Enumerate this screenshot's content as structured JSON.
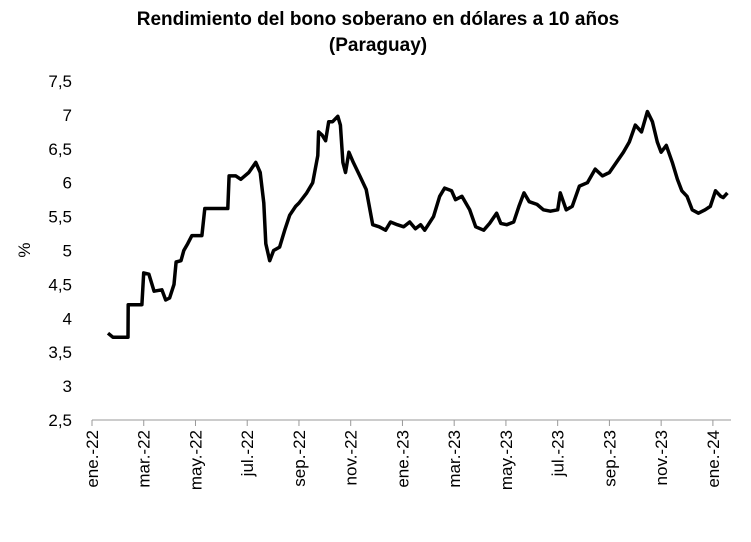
{
  "chart_data": {
    "type": "line",
    "title": [
      "Rendimiento del bono soberano en dólares a 10 años",
      "(Paraguay)"
    ],
    "y_label": "%",
    "xlim": [
      0,
      24.7
    ],
    "xticks": [
      {
        "value": 0,
        "label": "ene.-22"
      },
      {
        "value": 2,
        "label": "mar.-22"
      },
      {
        "value": 4,
        "label": "may.-22"
      },
      {
        "value": 6,
        "label": "jul.-22"
      },
      {
        "value": 8,
        "label": "sep.-22"
      },
      {
        "value": 10,
        "label": "nov.-22"
      },
      {
        "value": 12,
        "label": "ene.-23"
      },
      {
        "value": 14,
        "label": "mar.-23"
      },
      {
        "value": 16,
        "label": "may.-23"
      },
      {
        "value": 18,
        "label": "jul.-23"
      },
      {
        "value": 20,
        "label": "sep.-23"
      },
      {
        "value": 22,
        "label": "nov.-23"
      },
      {
        "value": 24,
        "label": "ene.-24"
      }
    ],
    "ylim": [
      2.5,
      7.5
    ],
    "yticks": [
      {
        "value": 2.5,
        "label": "2,5"
      },
      3,
      {
        "value": 3.5,
        "label": "3,5"
      },
      4,
      {
        "value": 4.5,
        "label": "4,5"
      },
      5,
      {
        "value": 5.5,
        "label": "5,5"
      },
      6,
      {
        "value": 6.5,
        "label": "6,5"
      },
      7,
      {
        "value": 7.5,
        "label": "7,5"
      }
    ],
    "x": [
      0.62,
      0.81,
      1.39,
      1.4,
      1.93,
      2.0,
      2.2,
      2.4,
      2.7,
      2.85,
      3.0,
      3.17,
      3.25,
      3.44,
      3.55,
      3.7,
      3.86,
      4.25,
      4.36,
      5.25,
      5.3,
      5.56,
      5.75,
      6.06,
      6.33,
      6.5,
      6.64,
      6.72,
      6.87,
      7.02,
      7.25,
      7.45,
      7.64,
      7.87,
      8.0,
      8.3,
      8.53,
      8.73,
      8.76,
      8.9,
      9.03,
      9.15,
      9.3,
      9.5,
      9.6,
      9.7,
      9.8,
      9.93,
      10.1,
      10.35,
      10.6,
      10.85,
      11.1,
      11.35,
      11.54,
      11.8,
      12.05,
      12.28,
      12.5,
      12.7,
      12.86,
      13.0,
      13.2,
      13.44,
      13.63,
      13.9,
      14.05,
      14.3,
      14.6,
      14.83,
      15.14,
      15.37,
      15.64,
      15.8,
      16.03,
      16.3,
      16.5,
      16.7,
      16.9,
      17.2,
      17.45,
      17.72,
      18.0,
      18.1,
      18.33,
      18.56,
      18.84,
      19.15,
      19.45,
      19.73,
      20.0,
      20.27,
      20.54,
      20.77,
      21.0,
      21.24,
      21.47,
      21.66,
      21.85,
      22.0,
      22.2,
      22.43,
      22.63,
      22.8,
      23.0,
      23.2,
      23.44,
      23.7,
      23.9,
      24.1,
      24.3,
      24.4,
      24.56
    ],
    "series": [
      {
        "color": "#000000",
        "values": [
          3.78,
          3.72,
          3.72,
          4.2,
          4.2,
          4.67,
          4.65,
          4.4,
          4.42,
          4.27,
          4.3,
          4.5,
          4.83,
          4.85,
          5.0,
          5.1,
          5.22,
          5.22,
          5.62,
          5.62,
          6.1,
          6.1,
          6.05,
          6.15,
          6.3,
          6.15,
          5.7,
          5.1,
          4.85,
          5.0,
          5.05,
          5.3,
          5.52,
          5.65,
          5.7,
          5.85,
          6.0,
          6.4,
          6.75,
          6.7,
          6.62,
          6.9,
          6.9,
          6.98,
          6.85,
          6.3,
          6.15,
          6.45,
          6.3,
          6.1,
          5.9,
          5.38,
          5.35,
          5.3,
          5.42,
          5.38,
          5.35,
          5.42,
          5.32,
          5.38,
          5.3,
          5.38,
          5.5,
          5.8,
          5.92,
          5.88,
          5.75,
          5.8,
          5.6,
          5.35,
          5.3,
          5.4,
          5.55,
          5.4,
          5.38,
          5.42,
          5.65,
          5.85,
          5.72,
          5.68,
          5.6,
          5.58,
          5.6,
          5.85,
          5.6,
          5.65,
          5.95,
          6.0,
          6.2,
          6.1,
          6.15,
          6.3,
          6.45,
          6.6,
          6.85,
          6.75,
          7.05,
          6.9,
          6.6,
          6.45,
          6.55,
          6.3,
          6.05,
          5.88,
          5.8,
          5.6,
          5.55,
          5.6,
          5.65,
          5.88,
          5.8,
          5.78,
          5.85
        ]
      }
    ]
  }
}
